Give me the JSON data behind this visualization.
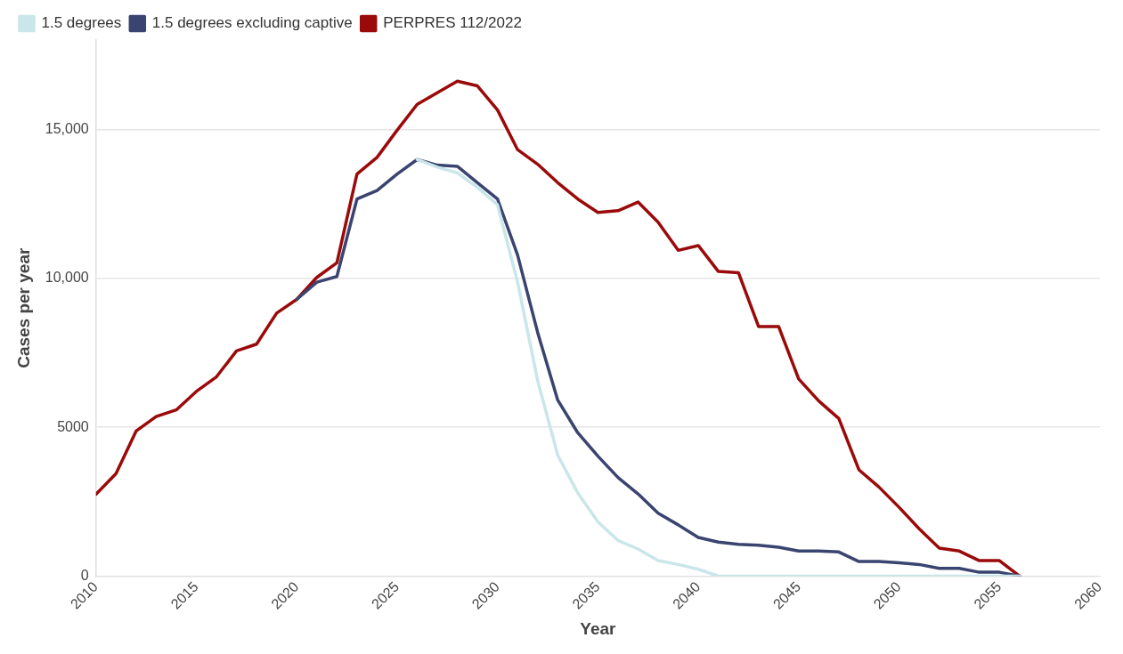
{
  "chart_data": {
    "type": "line",
    "xlabel": "Year",
    "ylabel": "Cases per year",
    "legend": "top left",
    "grid": "y",
    "marker": "none",
    "line_style": "solid",
    "x": [
      2010,
      2011,
      2012,
      2013,
      2014,
      2015,
      2016,
      2017,
      2018,
      2019,
      2020,
      2021,
      2022,
      2023,
      2024,
      2025,
      2026,
      2027,
      2028,
      2029,
      2030,
      2031,
      2032,
      2033,
      2034,
      2035,
      2036,
      2037,
      2038,
      2039,
      2040,
      2041,
      2042,
      2043,
      2044,
      2045,
      2046,
      2047,
      2048,
      2049,
      2050,
      2051,
      2052,
      2053,
      2054,
      2055,
      2056
    ],
    "xlim": [
      2010,
      2060
    ],
    "xticks": [
      2010,
      2015,
      2020,
      2025,
      2030,
      2035,
      2040,
      2045,
      2050,
      2055,
      2060
    ],
    "ylim": [
      0,
      18000
    ],
    "yticks": [
      {
        "value": 0,
        "label": "0"
      },
      {
        "value": 5000,
        "label": "5000"
      },
      {
        "value": 10000,
        "label": "10,000"
      },
      {
        "value": 15000,
        "label": "15,000"
      }
    ],
    "series": [
      {
        "name": "1.5 degrees",
        "color": "#c9e6ea",
        "values": [
          null,
          null,
          null,
          null,
          null,
          null,
          null,
          null,
          null,
          null,
          null,
          null,
          null,
          null,
          null,
          null,
          13990,
          13730,
          13540,
          13050,
          12470,
          9870,
          6560,
          4060,
          2790,
          1820,
          1200,
          910,
          520,
          390,
          230,
          0,
          0,
          0,
          0,
          0,
          0,
          0,
          0,
          0,
          0,
          0,
          0,
          0,
          0,
          0,
          0
        ]
      },
      {
        "name": "1.5 degrees excluding captive",
        "color": "#3a4470",
        "values": [
          null,
          null,
          null,
          null,
          null,
          null,
          null,
          null,
          null,
          null,
          9290,
          9870,
          10060,
          12660,
          12950,
          13500,
          13990,
          13800,
          13760,
          13210,
          12660,
          10780,
          8180,
          5910,
          4810,
          4030,
          3310,
          2760,
          2110,
          1720,
          1300,
          1140,
          1070,
          1040,
          970,
          840,
          840,
          810,
          490,
          490,
          450,
          390,
          260,
          260,
          130,
          130,
          0
        ]
      },
      {
        "name": "PERPRES 112/2022",
        "color": "#9b0a0a",
        "values": [
          2750,
          3440,
          4870,
          5360,
          5580,
          6200,
          6690,
          7560,
          7790,
          8830,
          9290,
          10030,
          10520,
          13500,
          14060,
          14970,
          15840,
          16230,
          16620,
          16460,
          15650,
          14320,
          13830,
          13210,
          12660,
          12210,
          12270,
          12560,
          11880,
          10940,
          11100,
          10230,
          10190,
          8380,
          8380,
          6620,
          5880,
          5290,
          3570,
          2990,
          2310,
          1590,
          940,
          840,
          520,
          520,
          0
        ]
      }
    ]
  }
}
